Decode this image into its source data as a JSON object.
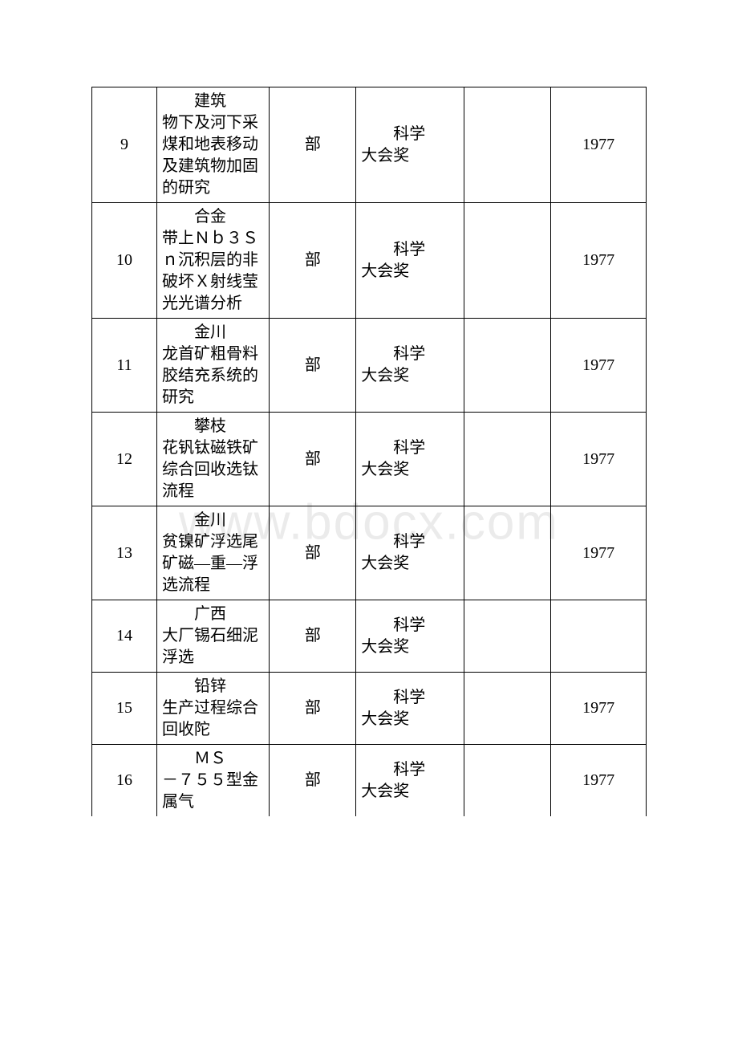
{
  "watermark": "www.bdocx.com",
  "table": {
    "columns": {
      "num_width": 75,
      "title_width": 130,
      "dept_width": 100,
      "award_width": 125,
      "blank_width": 100,
      "year_width": 110
    },
    "border_color": "#000000",
    "background_color": "#ffffff",
    "text_color": "#000000",
    "font_size": 20,
    "watermark_color": "#ebebeb",
    "watermark_fontsize": 62,
    "rows": [
      {
        "num": "9",
        "title_first": "建筑",
        "title_rest": "物下及河下采煤和地表移动及建筑物加固的研究",
        "dept": "部",
        "award_first": "科学",
        "award_rest": "大会奖",
        "blank": "",
        "year": "1977"
      },
      {
        "num": "10",
        "title_first": "合金",
        "title_rest": "带上Ｎｂ３Ｓｎ沉积层的非破坏Ｘ射线莹光光谱分析",
        "dept": "部",
        "award_first": "科学",
        "award_rest": "大会奖",
        "blank": "",
        "year": "1977"
      },
      {
        "num": "11",
        "title_first": "金川",
        "title_rest": "龙首矿粗骨料胶结充系统的研究",
        "dept": "部",
        "award_first": "科学",
        "award_rest": "大会奖",
        "blank": "",
        "year": "1977"
      },
      {
        "num": "12",
        "title_first": "攀枝",
        "title_rest": "花钒钛磁铁矿综合回收选钛流程",
        "dept": "部",
        "award_first": "科学",
        "award_rest": "大会奖",
        "blank": "",
        "year": "1977"
      },
      {
        "num": "13",
        "title_first": "金川",
        "title_rest": "贫镍矿浮选尾矿磁—重—浮选流程",
        "dept": "部",
        "award_first": "科学",
        "award_rest": "大会奖",
        "blank": "",
        "year": "1977"
      },
      {
        "num": "14",
        "title_first": "广西",
        "title_rest": "大厂锡石细泥浮选",
        "dept": "部",
        "award_first": "科学",
        "award_rest": "大会奖",
        "blank": "",
        "year": ""
      },
      {
        "num": "15",
        "title_first": "铅锌",
        "title_rest": "生产过程综合回收陀",
        "dept": "部",
        "award_first": "科学",
        "award_rest": "大会奖",
        "blank": "",
        "year": "1977"
      },
      {
        "num": "16",
        "title_first": "ＭＳ",
        "title_rest": "－７５５型金属气",
        "dept": "部",
        "award_first": "科学",
        "award_rest": "大会奖",
        "blank": "",
        "year": "1977"
      }
    ]
  }
}
